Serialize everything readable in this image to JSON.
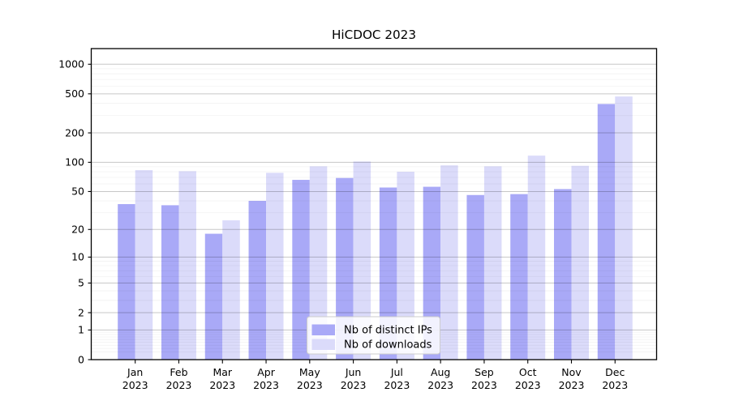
{
  "title": "HiCDOC 2023",
  "chart_data": {
    "type": "bar",
    "title": "HiCDOC 2023",
    "categories": [
      "Jan 2023",
      "Feb 2023",
      "Mar 2023",
      "Apr 2023",
      "May 2023",
      "Jun 2023",
      "Jul 2023",
      "Aug 2023",
      "Sep 2023",
      "Oct 2023",
      "Nov 2023",
      "Dec 2023"
    ],
    "series": [
      {
        "name": "Nb of distinct IPs",
        "color": "#a9a9f7",
        "values": [
          37,
          36,
          18,
          40,
          66,
          69,
          55,
          56,
          46,
          47,
          53,
          394
        ]
      },
      {
        "name": "Nb of downloads",
        "color": "#dbdbfa",
        "values": [
          83,
          81,
          25,
          78,
          91,
          102,
          80,
          93,
          91,
          117,
          92,
          470
        ]
      }
    ],
    "xlabel": "",
    "ylabel": "",
    "yscale": "log1p",
    "yticks": [
      1000,
      500,
      200,
      100,
      50,
      20,
      10,
      5,
      2,
      1,
      0
    ],
    "ylim": [
      0,
      1440
    ],
    "grid": true,
    "legend_position": "lower center"
  },
  "colors": {
    "bar_dark": "#a9a9f7",
    "bar_light": "#dbdbfa",
    "grid_major": "rgba(0,0,0,0.22)",
    "grid_minor": "rgba(0,0,0,0.055)",
    "axis": "#000000",
    "legend_border": "#cccccc",
    "legend_bg": "rgba(255,255,255,0.85)"
  }
}
